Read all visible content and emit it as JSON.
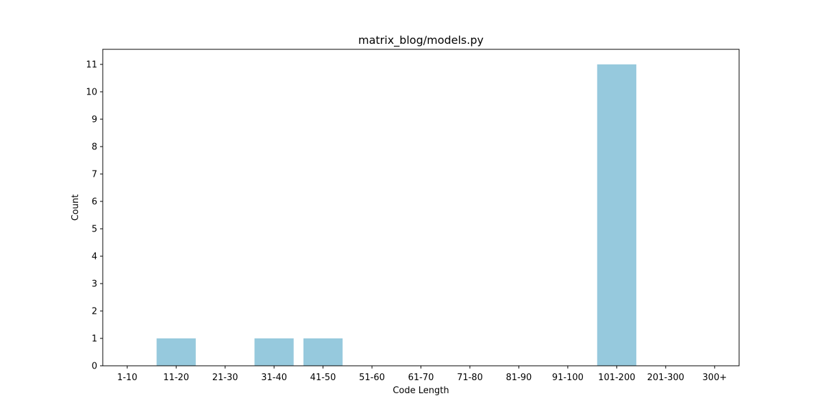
{
  "chart_data": {
    "type": "bar",
    "title": "matrix_blog/models.py",
    "xlabel": "Code Length",
    "ylabel": "Count",
    "categories": [
      "1-10",
      "11-20",
      "21-30",
      "31-40",
      "41-50",
      "51-60",
      "61-70",
      "71-80",
      "81-90",
      "91-100",
      "101-200",
      "201-300",
      "300+"
    ],
    "values": [
      0,
      1,
      0,
      1,
      1,
      0,
      0,
      0,
      0,
      0,
      11,
      0,
      0
    ],
    "ylim": [
      0,
      11.55
    ],
    "yticks": [
      0,
      1,
      2,
      3,
      4,
      5,
      6,
      7,
      8,
      9,
      10,
      11
    ],
    "bar_color": "#96c9dd",
    "grid": false,
    "legend": "none"
  }
}
